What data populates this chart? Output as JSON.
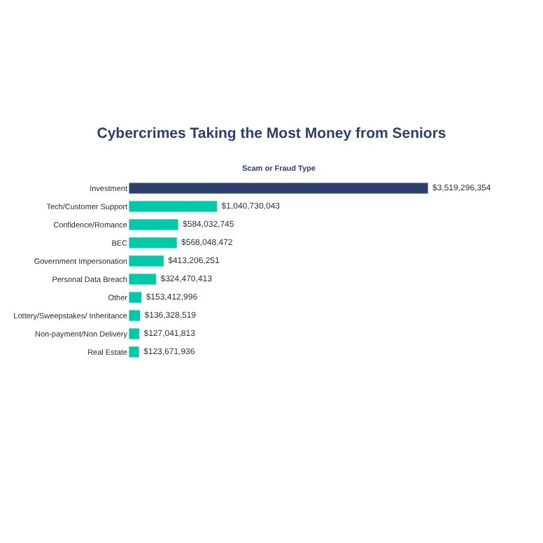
{
  "chart_data": {
    "type": "bar",
    "orientation": "horizontal",
    "title": "Cybercrimes Taking the Most Money from Seniors",
    "ylabel": "Scam or Fraud Type",
    "categories": [
      "Investment",
      "Tech/Customer Support",
      "Confidence/Romance",
      "BEC",
      "Government Impersonation",
      "Personal Data Breach",
      "Other",
      "Lottery/Sweepstakes/ Inheritance",
      "Non-payment/Non Delivery",
      "Real Estate"
    ],
    "values": [
      3519296354,
      1040730043,
      584032745,
      568048472,
      413206251,
      324470413,
      153412996,
      136328519,
      127041813,
      123671936
    ],
    "value_labels": [
      "$3,519,296,354",
      "$1,040,730,043",
      "$584,032,745",
      "$568,048,472",
      "$413,206,251",
      "$324,470,413",
      "$153,412,996",
      "$136,328,519",
      "$127,041,813",
      "$123,671,936"
    ],
    "colors": [
      "#2e3f6e",
      "#00c9a7",
      "#00c9a7",
      "#00c9a7",
      "#00c9a7",
      "#00c9a7",
      "#00c9a7",
      "#00c9a7",
      "#00c9a7",
      "#00c9a7"
    ],
    "legend": false
  }
}
